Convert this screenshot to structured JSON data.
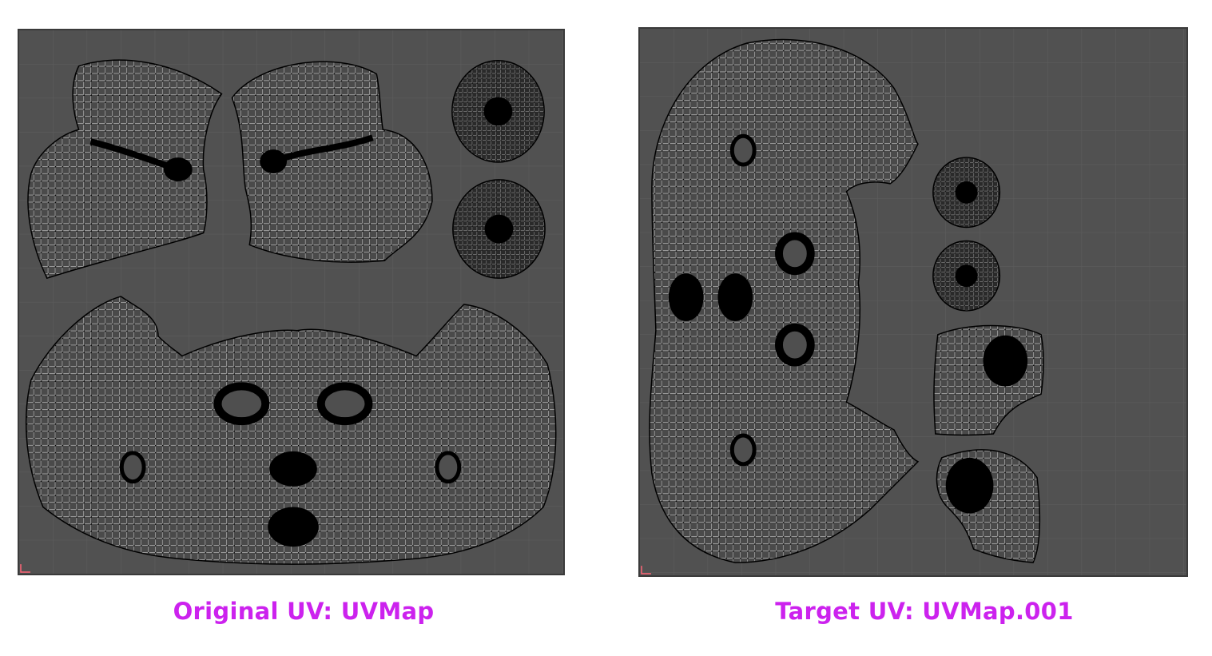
{
  "panels": [
    {
      "id": "left",
      "caption": "Original UV: UVMap",
      "islands": [
        {
          "kind": "mesh",
          "name": "left-ear-island"
        },
        {
          "kind": "mesh",
          "name": "right-ear-island"
        },
        {
          "kind": "radial",
          "name": "eye-disc-upper"
        },
        {
          "kind": "radial",
          "name": "eye-disc-lower"
        },
        {
          "kind": "mesh",
          "name": "face-island"
        }
      ]
    },
    {
      "id": "right",
      "caption": "Target UV: UVMap.001",
      "islands": [
        {
          "kind": "mesh",
          "name": "face-island"
        },
        {
          "kind": "radial",
          "name": "eye-disc-upper"
        },
        {
          "kind": "radial",
          "name": "eye-disc-lower"
        },
        {
          "kind": "mesh",
          "name": "ear-island-upper"
        },
        {
          "kind": "mesh",
          "name": "ear-island-lower"
        }
      ]
    }
  ],
  "colors": {
    "background": "#515151",
    "grid": "#5c5c5c",
    "wire": "#ffffff",
    "vertex": "#000000",
    "caption": "#cc22ee"
  }
}
